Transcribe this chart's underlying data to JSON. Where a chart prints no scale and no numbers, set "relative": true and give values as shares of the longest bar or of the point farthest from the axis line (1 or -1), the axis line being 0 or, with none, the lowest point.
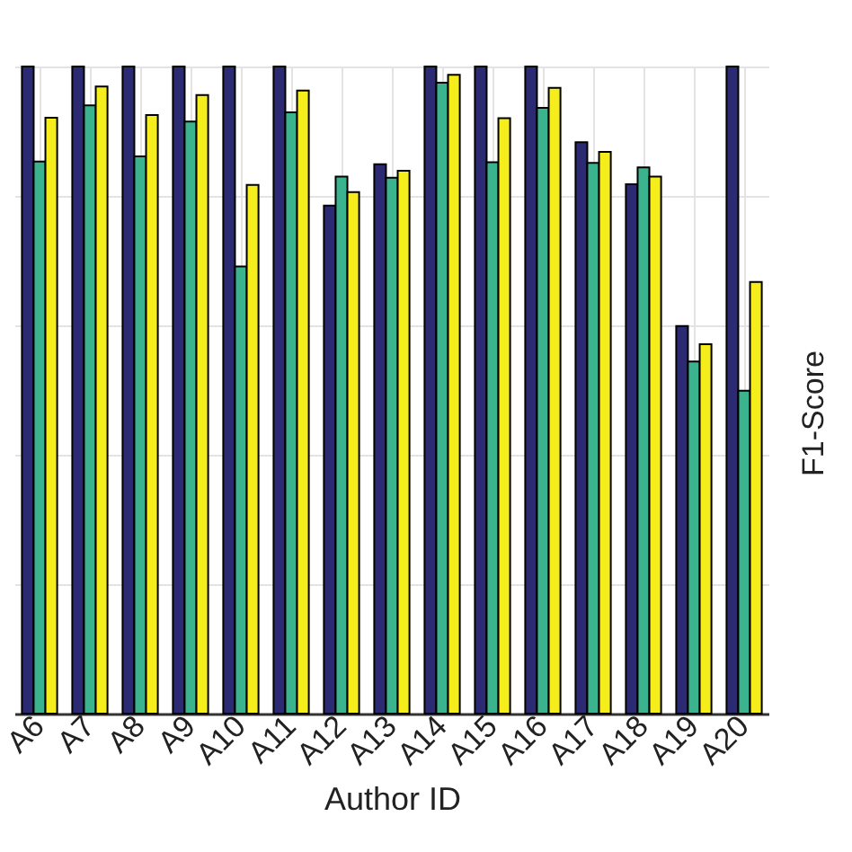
{
  "chart_data": {
    "type": "bar",
    "relative": true,
    "xlabel": "Author ID",
    "grid": true,
    "categories": [
      "A6",
      "A7",
      "A8",
      "A9",
      "A10",
      "A11",
      "A12",
      "A13",
      "A14",
      "A15",
      "A16",
      "A17",
      "A18",
      "A19",
      "A20"
    ],
    "series": [
      {
        "color": "#2b2a72",
        "values": [
          1,
          1,
          1,
          1,
          1,
          1,
          0.785,
          0.849,
          1,
          1,
          1,
          0.883,
          0.818,
          0.599,
          1
        ]
      },
      {
        "color": "#3bb38f",
        "values": [
          0.853,
          0.94,
          0.861,
          0.915,
          0.691,
          0.929,
          0.83,
          0.828,
          0.975,
          0.852,
          0.936,
          0.851,
          0.844,
          0.544,
          0.499
        ]
      },
      {
        "color": "#f5ee1c",
        "values": [
          0.921,
          0.969,
          0.925,
          0.956,
          0.817,
          0.963,
          0.806,
          0.839,
          0.987,
          0.92,
          0.967,
          0.868,
          0.83,
          0.571,
          0.667
        ]
      }
    ],
    "annotations": [
      "F1-Score"
    ]
  }
}
